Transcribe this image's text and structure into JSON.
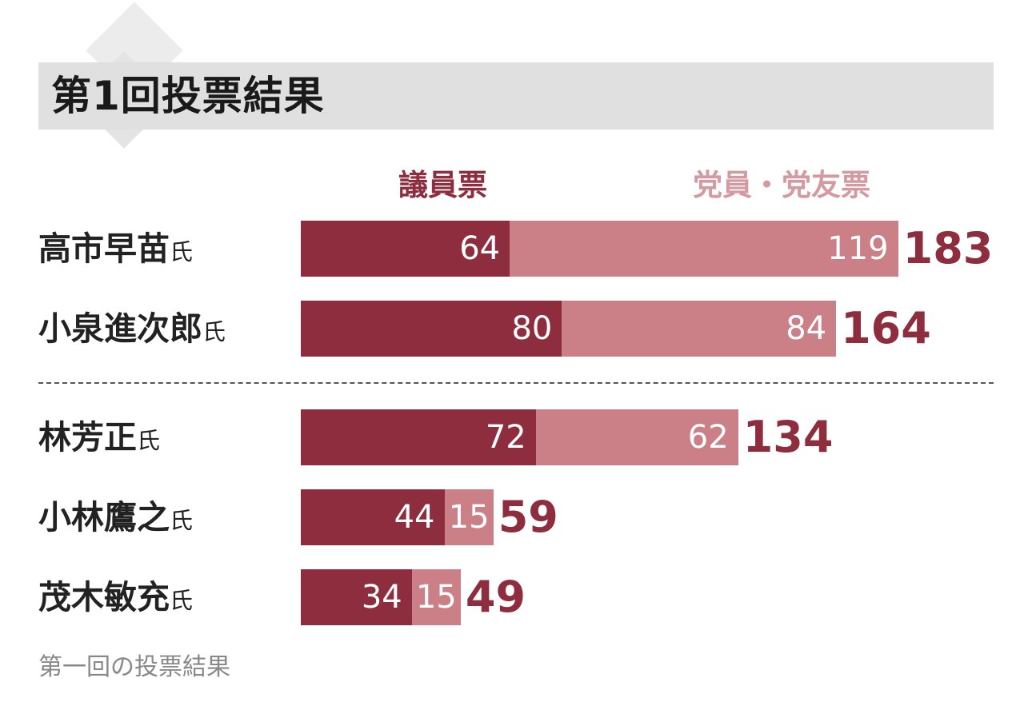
{
  "title": "第1回投票結果",
  "caption": "第一回の投票結果",
  "colors": {
    "diet_votes": "#8e2d3e",
    "party_votes": "#cb8088",
    "legend_party_text": "#d49aa1",
    "title_band": "#e0e0e0"
  },
  "chart_data": {
    "type": "bar",
    "orientation": "horizontal",
    "stacked": true,
    "title": "第1回投票結果",
    "categories": [
      "高市早苗",
      "小泉進次郎",
      "林芳正",
      "小林鷹之",
      "茂木敏充"
    ],
    "name_suffix": "氏",
    "series": [
      {
        "name": "議員票",
        "values": [
          64,
          80,
          72,
          44,
          34
        ]
      },
      {
        "name": "党員・党友票",
        "values": [
          119,
          84,
          62,
          15,
          15
        ]
      }
    ],
    "totals": [
      183,
      164,
      134,
      59,
      49
    ],
    "legend_position": "top",
    "divider_after_index": 1,
    "grid": false
  }
}
